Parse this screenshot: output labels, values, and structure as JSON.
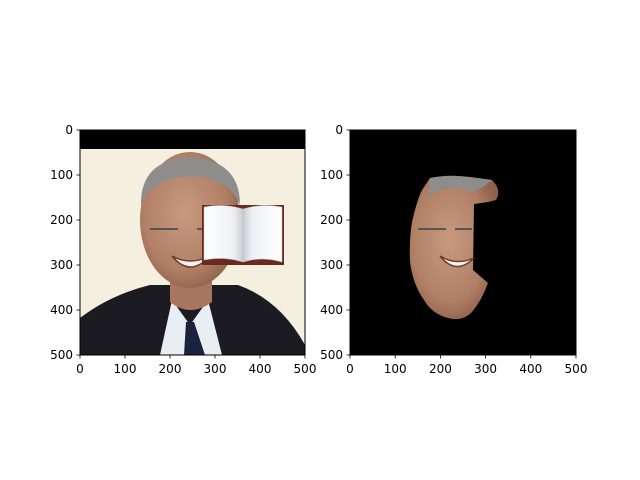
{
  "chart_data": [
    {
      "type": "image",
      "content": "photo of a smiling man in a dark suit and tie with an open book graphic pasted over the right side of his face",
      "xlim": [
        0,
        500
      ],
      "ylim": [
        500,
        0
      ],
      "xticks": [
        0,
        100,
        200,
        300,
        400,
        500
      ],
      "yticks": [
        0,
        100,
        200,
        300,
        400,
        500
      ],
      "xticklabels": [
        "0",
        "100",
        "200",
        "300",
        "400",
        "500"
      ],
      "yticklabels": [
        "0",
        "100",
        "200",
        "300",
        "400",
        "500"
      ],
      "top_black_bar_y": [
        0,
        42
      ],
      "occluder": {
        "shape": "open-book",
        "x": [
          270,
          455
        ],
        "y": [
          165,
          300
        ]
      },
      "colors": {
        "background": "#f4efdf",
        "suit": "#1d1b22",
        "skin": "#b98a70",
        "hair": "#8f8d8b",
        "shirt": "#e9eef2",
        "tie": "#1b2240",
        "book_cover": "#6a2a20",
        "book_page": "#f3f4f6"
      }
    },
    {
      "type": "image",
      "content": "segmentation mask showing only the visible part of the face on a black background",
      "xlim": [
        0,
        500
      ],
      "ylim": [
        500,
        0
      ],
      "xticks": [
        0,
        100,
        200,
        300,
        400,
        500
      ],
      "yticks": [
        0,
        100,
        200,
        300,
        400,
        500
      ],
      "xticklabels": [
        "0",
        "100",
        "200",
        "300",
        "400",
        "500"
      ],
      "yticklabels": [
        "0",
        "100",
        "200",
        "300",
        "400",
        "500"
      ],
      "colors": {
        "background": "#000000",
        "skin": "#b98a70"
      }
    }
  ]
}
